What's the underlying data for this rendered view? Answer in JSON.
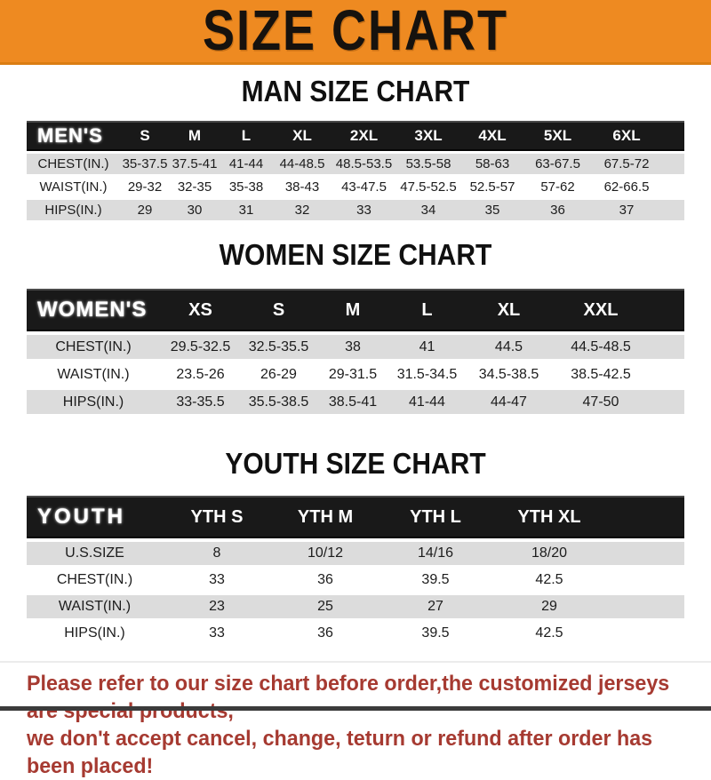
{
  "banner": {
    "title": "SIZE CHART"
  },
  "sections": [
    {
      "id": "men",
      "heading": "MAN SIZE CHART",
      "header_label": "MEN'S",
      "columns": [
        "S",
        "M",
        "L",
        "XL",
        "2XL",
        "3XL",
        "4XL",
        "5XL",
        "6XL"
      ],
      "rows": [
        {
          "label": "CHEST(IN.)",
          "values": [
            "35-37.5",
            "37.5-41",
            "41-44",
            "44-48.5",
            "48.5-53.5",
            "53.5-58",
            "58-63",
            "63-67.5",
            "67.5-72"
          ]
        },
        {
          "label": "WAIST(IN.)",
          "values": [
            "29-32",
            "32-35",
            "35-38",
            "38-43",
            "43-47.5",
            "47.5-52.5",
            "52.5-57",
            "57-62",
            "62-66.5"
          ]
        },
        {
          "label": "HIPS(IN.)",
          "values": [
            "29",
            "30",
            "31",
            "32",
            "33",
            "34",
            "35",
            "36",
            "37"
          ]
        }
      ]
    },
    {
      "id": "women",
      "heading": "WOMEN SIZE CHART",
      "header_label": "WOMEN'S",
      "columns": [
        "XS",
        "S",
        "M",
        "L",
        "XL",
        "XXL"
      ],
      "rows": [
        {
          "label": "CHEST(IN.)",
          "values": [
            "29.5-32.5",
            "32.5-35.5",
            "38",
            "41",
            "44.5",
            "44.5-48.5"
          ]
        },
        {
          "label": "WAIST(IN.)",
          "values": [
            "23.5-26",
            "26-29",
            "29-31.5",
            "31.5-34.5",
            "34.5-38.5",
            "38.5-42.5"
          ]
        },
        {
          "label": "HIPS(IN.)",
          "values": [
            "33-35.5",
            "35.5-38.5",
            "38.5-41",
            "41-44",
            "44-47",
            "47-50"
          ]
        }
      ]
    },
    {
      "id": "youth",
      "heading": "YOUTH SIZE CHART",
      "header_label": "YOUTH",
      "columns": [
        "YTH S",
        "YTH M",
        "YTH L",
        "YTH XL"
      ],
      "rows": [
        {
          "label": "U.S.SIZE",
          "values": [
            "8",
            "10/12",
            "14/16",
            "18/20"
          ]
        },
        {
          "label": "CHEST(IN.)",
          "values": [
            "33",
            "36",
            "39.5",
            "42.5"
          ]
        },
        {
          "label": "WAIST(IN.)",
          "values": [
            "23",
            "25",
            "27",
            "29"
          ]
        },
        {
          "label": "HIPS(IN.)",
          "values": [
            "33",
            "36",
            "39.5",
            "42.5"
          ]
        }
      ]
    }
  ],
  "footer": {
    "line1": "Please refer to our size chart before order,the customized jerseys are special products,",
    "line2": "we don't accept cancel, change, teturn or refund after order has been placed!"
  },
  "colors": {
    "banner_orange": "#EE8A21",
    "header_bar_black": "#191919",
    "row_gray": "#DCDCDC",
    "note_red": "#A63A31",
    "bottom_strip_gray": "#3B3B3B"
  }
}
